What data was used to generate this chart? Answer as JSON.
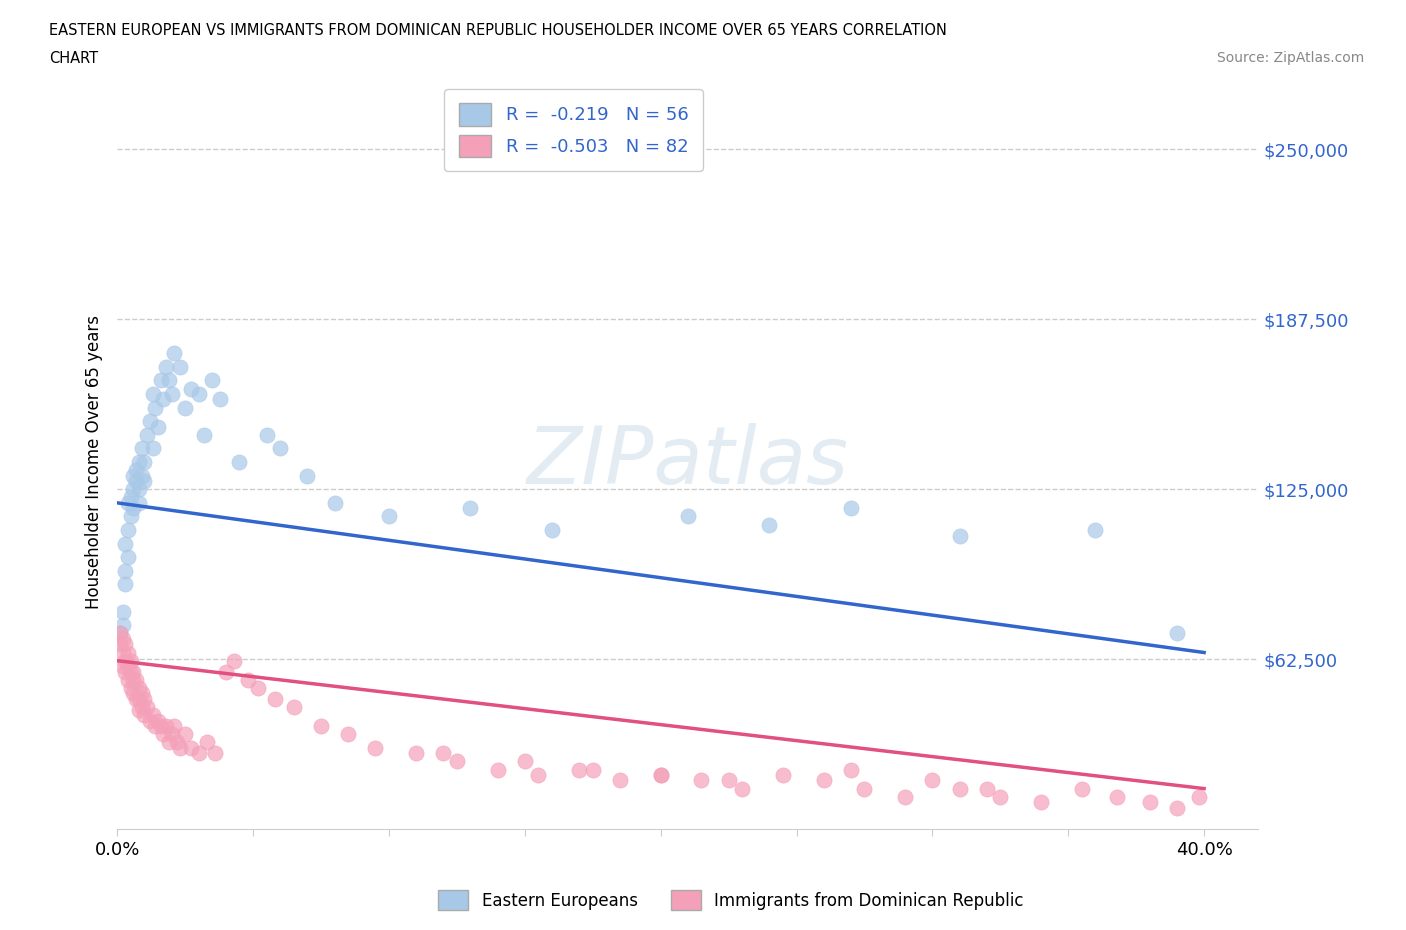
{
  "title_line1": "EASTERN EUROPEAN VS IMMIGRANTS FROM DOMINICAN REPUBLIC HOUSEHOLDER INCOME OVER 65 YEARS CORRELATION",
  "title_line2": "CHART",
  "source": "Source: ZipAtlas.com",
  "ylabel": "Householder Income Over 65 years",
  "xlim": [
    0.0,
    0.42
  ],
  "ylim": [
    0,
    270000
  ],
  "yticks": [
    62500,
    125000,
    187500,
    250000
  ],
  "ytick_labels": [
    "$62,500",
    "$125,000",
    "$187,500",
    "$250,000"
  ],
  "xticks": [
    0.0,
    0.05,
    0.1,
    0.15,
    0.2,
    0.25,
    0.3,
    0.35,
    0.4
  ],
  "blue_color": "#a8c8e8",
  "pink_color": "#f4a0b8",
  "blue_line_color": "#3366cc",
  "pink_line_color": "#e05080",
  "blue_R": -0.219,
  "blue_N": 56,
  "pink_R": -0.503,
  "pink_N": 82,
  "watermark": "ZIPatlas",
  "legend_label_blue": "Eastern Europeans",
  "legend_label_pink": "Immigrants from Dominican Republic",
  "blue_scatter_x": [
    0.001,
    0.002,
    0.002,
    0.003,
    0.003,
    0.003,
    0.004,
    0.004,
    0.004,
    0.005,
    0.005,
    0.006,
    0.006,
    0.006,
    0.007,
    0.007,
    0.008,
    0.008,
    0.008,
    0.009,
    0.009,
    0.01,
    0.01,
    0.011,
    0.012,
    0.013,
    0.013,
    0.014,
    0.015,
    0.016,
    0.017,
    0.018,
    0.019,
    0.02,
    0.021,
    0.023,
    0.025,
    0.027,
    0.03,
    0.032,
    0.035,
    0.038,
    0.045,
    0.055,
    0.06,
    0.07,
    0.08,
    0.1,
    0.13,
    0.16,
    0.21,
    0.24,
    0.27,
    0.31,
    0.36,
    0.39
  ],
  "blue_scatter_y": [
    72000,
    75000,
    80000,
    90000,
    95000,
    105000,
    100000,
    110000,
    120000,
    115000,
    122000,
    118000,
    125000,
    130000,
    128000,
    132000,
    120000,
    125000,
    135000,
    130000,
    140000,
    128000,
    135000,
    145000,
    150000,
    140000,
    160000,
    155000,
    148000,
    165000,
    158000,
    170000,
    165000,
    160000,
    175000,
    170000,
    155000,
    162000,
    160000,
    145000,
    165000,
    158000,
    135000,
    145000,
    140000,
    130000,
    120000,
    115000,
    118000,
    110000,
    115000,
    112000,
    118000,
    108000,
    110000,
    72000
  ],
  "pink_scatter_x": [
    0.001,
    0.001,
    0.002,
    0.002,
    0.002,
    0.003,
    0.003,
    0.003,
    0.004,
    0.004,
    0.004,
    0.005,
    0.005,
    0.005,
    0.006,
    0.006,
    0.006,
    0.007,
    0.007,
    0.008,
    0.008,
    0.008,
    0.009,
    0.009,
    0.01,
    0.01,
    0.011,
    0.012,
    0.013,
    0.014,
    0.015,
    0.016,
    0.017,
    0.018,
    0.019,
    0.02,
    0.021,
    0.022,
    0.023,
    0.025,
    0.027,
    0.03,
    0.033,
    0.036,
    0.04,
    0.043,
    0.048,
    0.052,
    0.058,
    0.065,
    0.075,
    0.085,
    0.095,
    0.11,
    0.125,
    0.14,
    0.155,
    0.17,
    0.185,
    0.2,
    0.215,
    0.23,
    0.245,
    0.26,
    0.275,
    0.29,
    0.31,
    0.325,
    0.34,
    0.355,
    0.368,
    0.38,
    0.39,
    0.398,
    0.15,
    0.175,
    0.2,
    0.225,
    0.12,
    0.27,
    0.3,
    0.32
  ],
  "pink_scatter_y": [
    72000,
    68000,
    70000,
    65000,
    60000,
    68000,
    62000,
    58000,
    65000,
    60000,
    55000,
    62000,
    58000,
    52000,
    58000,
    55000,
    50000,
    55000,
    48000,
    52000,
    48000,
    44000,
    50000,
    45000,
    48000,
    42000,
    45000,
    40000,
    42000,
    38000,
    40000,
    38000,
    35000,
    38000,
    32000,
    35000,
    38000,
    32000,
    30000,
    35000,
    30000,
    28000,
    32000,
    28000,
    58000,
    62000,
    55000,
    52000,
    48000,
    45000,
    38000,
    35000,
    30000,
    28000,
    25000,
    22000,
    20000,
    22000,
    18000,
    20000,
    18000,
    15000,
    20000,
    18000,
    15000,
    12000,
    15000,
    12000,
    10000,
    15000,
    12000,
    10000,
    8000,
    12000,
    25000,
    22000,
    20000,
    18000,
    28000,
    22000,
    18000,
    15000
  ]
}
